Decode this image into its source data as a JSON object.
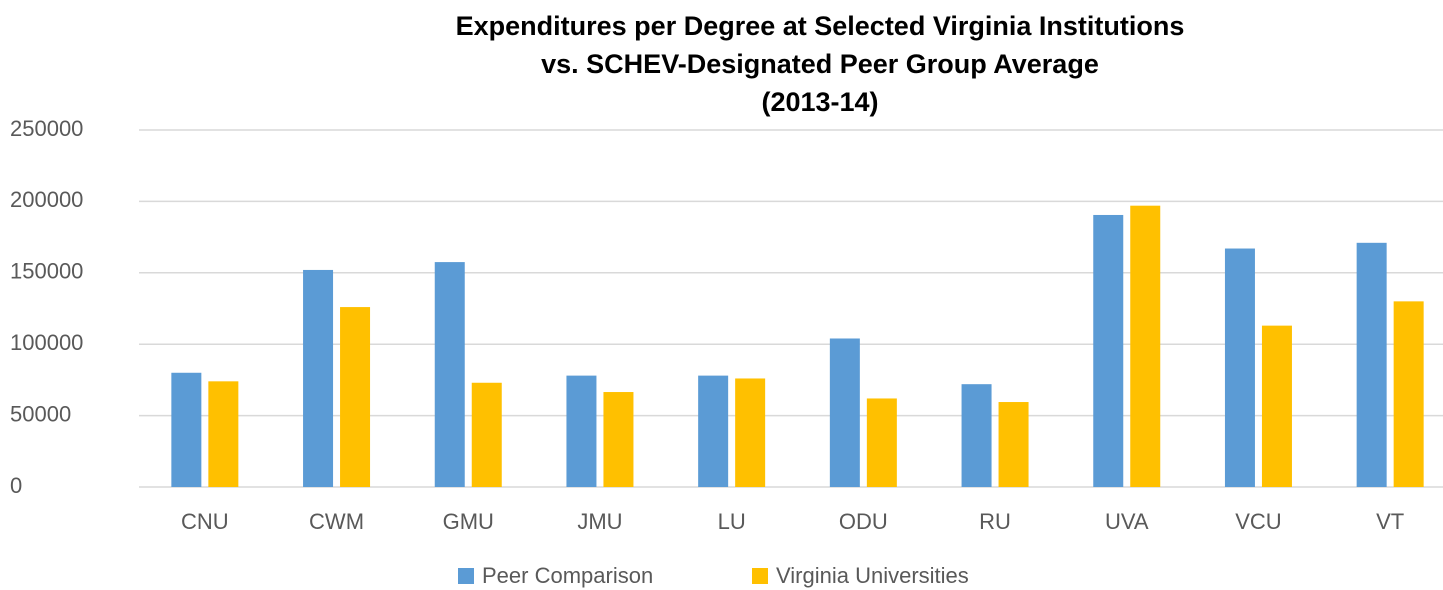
{
  "chart_data": {
    "type": "bar",
    "title": [
      "Expenditures per Degree at Selected Virginia Institutions",
      "vs. SCHEV-Designated Peer Group Average",
      "(2013-14)"
    ],
    "categories": [
      "CNU",
      "CWM",
      "GMU",
      "JMU",
      "LU",
      "ODU",
      "RU",
      "UVA",
      "VCU",
      "VT"
    ],
    "series": [
      {
        "name": "Peer Comparison",
        "color": "#5b9bd5",
        "values": [
          80000,
          152000,
          157500,
          78000,
          78000,
          104000,
          72000,
          190500,
          167000,
          171000
        ]
      },
      {
        "name": "Virginia Universities",
        "color": "#ffc000",
        "values": [
          74000,
          126000,
          73000,
          66500,
          76000,
          62000,
          59500,
          197000,
          113000,
          130000
        ]
      }
    ],
    "ylim": [
      0,
      250000
    ],
    "yticks": [
      0,
      50000,
      100000,
      150000,
      200000,
      250000
    ],
    "grid": true,
    "legend": "bottom"
  }
}
